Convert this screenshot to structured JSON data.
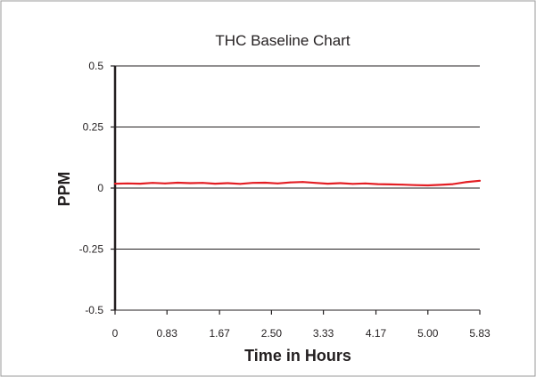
{
  "chart_data": {
    "type": "line",
    "title": "THC Baseline Chart",
    "xlabel": "Time in Hours",
    "ylabel": "PPM",
    "xlim": [
      0,
      5.83
    ],
    "ylim": [
      -0.5,
      0.5
    ],
    "x_ticks": [
      0,
      0.83,
      1.67,
      2.5,
      3.33,
      4.17,
      5.0,
      5.83
    ],
    "x_tick_labels": [
      "0",
      "0.83",
      "1.67",
      "2.50",
      "3.33",
      "4.17",
      "5.00",
      "5.83"
    ],
    "y_ticks": [
      0.5,
      0.25,
      0,
      -0.25,
      -0.5
    ],
    "y_tick_labels": [
      "0.5",
      "0.25",
      "0",
      "-0.25",
      "-0.5"
    ],
    "grid": "horizontal",
    "legend": "none",
    "series": [
      {
        "color": "#e31e24",
        "x": [
          0,
          0.2,
          0.4,
          0.6,
          0.8,
          1.0,
          1.2,
          1.4,
          1.6,
          1.8,
          2.0,
          2.2,
          2.4,
          2.6,
          2.8,
          3.0,
          3.2,
          3.4,
          3.6,
          3.8,
          4.0,
          4.2,
          4.4,
          4.6,
          4.8,
          5.0,
          5.2,
          5.4,
          5.6,
          5.83
        ],
        "y": [
          0.018,
          0.019,
          0.018,
          0.021,
          0.019,
          0.022,
          0.02,
          0.021,
          0.018,
          0.02,
          0.017,
          0.021,
          0.022,
          0.019,
          0.023,
          0.025,
          0.021,
          0.018,
          0.02,
          0.017,
          0.019,
          0.016,
          0.015,
          0.014,
          0.012,
          0.011,
          0.013,
          0.016,
          0.024,
          0.03
        ]
      }
    ]
  }
}
